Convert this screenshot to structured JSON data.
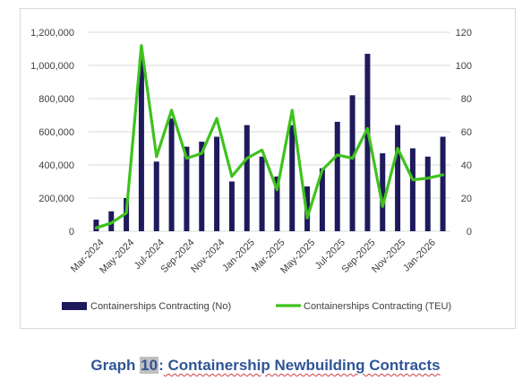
{
  "chart_data": {
    "type": "bar+line",
    "categories": [
      "Mar-2024",
      "Apr-2024",
      "May-2024",
      "Jun-2024",
      "Jul-2024",
      "Aug-2024",
      "Sep-2024",
      "Oct-2024",
      "Nov-2024",
      "Dec-2024",
      "Jan-2025",
      "Feb-2025",
      "Mar-2025",
      "Apr-2025",
      "May-2025",
      "Jun-2025",
      "Jul-2025",
      "Aug-2025",
      "Sep-2025",
      "Oct-2025",
      "Nov-2025",
      "Dec-2025",
      "Jan-2026",
      "Feb-2026"
    ],
    "tick_labels": [
      "Mar-2024",
      "May-2024",
      "Jul-2024",
      "Sep-2024",
      "Nov-2024",
      "Jan-2025",
      "Mar-2025",
      "May-2025",
      "Jul-2025",
      "Sep-2025",
      "Nov-2025",
      "Jan-2026"
    ],
    "series": [
      {
        "name": "Containerships Contracting (No)",
        "type": "bar",
        "axis": "left",
        "color": "#1f1a5c",
        "values": [
          70000,
          120000,
          200000,
          1050000,
          420000,
          680000,
          510000,
          540000,
          570000,
          300000,
          640000,
          450000,
          330000,
          640000,
          270000,
          380000,
          660000,
          820000,
          1070000,
          470000,
          640000,
          500000,
          450000,
          570000
        ]
      },
      {
        "name": "Containerships Contracting (TEU)",
        "type": "line",
        "axis": "right",
        "color": "#3ec21d",
        "values": [
          2,
          5,
          11,
          112,
          45,
          73,
          44,
          47,
          68,
          33,
          44,
          49,
          25,
          73,
          8,
          37,
          46,
          44,
          62,
          15,
          50,
          31,
          32,
          34
        ]
      }
    ],
    "y_left": {
      "min": 0,
      "max": 1200000,
      "ticks": [
        "0",
        "200,000",
        "400,000",
        "600,000",
        "800,000",
        "1,000,000",
        "1,200,000"
      ]
    },
    "y_right": {
      "min": 0,
      "max": 120,
      "ticks": [
        "0",
        "20",
        "40",
        "60",
        "80",
        "100",
        "120"
      ]
    },
    "grid": true,
    "legend_position": "bottom"
  },
  "caption": {
    "prefix": "Graph ",
    "number": "10",
    "colon": ":",
    "title": " Containership Newbuilding Contracts"
  }
}
